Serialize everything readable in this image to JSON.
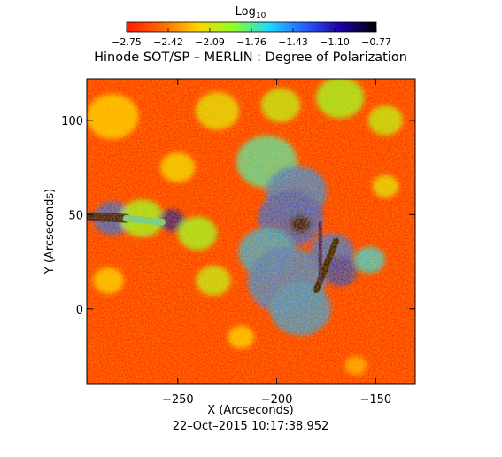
{
  "chart_data": {
    "type": "heatmap",
    "title": "Hinode SOT/SP – MERLIN : Degree of Polarization",
    "xlabel": "X (Arcseconds)",
    "ylabel": "Y (Arcseconds)",
    "xlim": [
      -296,
      -130
    ],
    "ylim": [
      -40,
      122
    ],
    "x_ticks": [
      -250,
      -200,
      -150
    ],
    "y_ticks": [
      0,
      50,
      100
    ],
    "x_tick_labels": [
      "−250",
      "−200",
      "−150"
    ],
    "y_tick_labels": [
      "0",
      "50",
      "100"
    ],
    "timestamp": "22–Oct–2015 10:17:38.952",
    "colorbar": {
      "label_base": "Log",
      "label_sub": "10",
      "range": [
        -2.75,
        -0.77
      ],
      "ticks": [
        -2.75,
        -2.42,
        -2.09,
        -1.76,
        -1.43,
        -1.1,
        -0.77
      ],
      "tick_labels": [
        "−2.75",
        "−2.42",
        "−2.09",
        "−1.76",
        "−1.43",
        "−1.10",
        "−0.77"
      ],
      "colors": [
        "#ff1a00",
        "#ff6a00",
        "#ffd400",
        "#8cff2a",
        "#1ed6ff",
        "#2a5cff",
        "#1a00a0",
        "#000000"
      ]
    },
    "regions": [
      {
        "x": -283,
        "y": 102,
        "r": 12,
        "level": -2.2
      },
      {
        "x": -230,
        "y": 105,
        "r": 10,
        "level": -2.1
      },
      {
        "x": -198,
        "y": 108,
        "r": 9,
        "level": -2.0
      },
      {
        "x": -168,
        "y": 112,
        "r": 11,
        "level": -1.9
      },
      {
        "x": -145,
        "y": 100,
        "r": 8,
        "level": -2.0
      },
      {
        "x": -205,
        "y": 78,
        "r": 14,
        "level": -1.7
      },
      {
        "x": -190,
        "y": 62,
        "r": 14,
        "level": -1.4
      },
      {
        "x": -193,
        "y": 48,
        "r": 15,
        "level": -1.3
      },
      {
        "x": -188,
        "y": 45,
        "r": 5,
        "level": -0.85
      },
      {
        "x": -205,
        "y": 30,
        "r": 13,
        "level": -1.5
      },
      {
        "x": -195,
        "y": 15,
        "r": 18,
        "level": -1.4
      },
      {
        "x": -188,
        "y": 0,
        "r": 14,
        "level": -1.45
      },
      {
        "x": -172,
        "y": 30,
        "r": 10,
        "level": -1.35
      },
      {
        "x": -168,
        "y": 20,
        "r": 8,
        "level": -1.2
      },
      {
        "x": -153,
        "y": 26,
        "r": 7,
        "level": -1.6
      },
      {
        "x": -283,
        "y": 48,
        "r": 9,
        "level": -1.3
      },
      {
        "x": -268,
        "y": 48,
        "r": 10,
        "level": -1.9
      },
      {
        "x": -253,
        "y": 47,
        "r": 6,
        "level": -1.05
      },
      {
        "x": -240,
        "y": 40,
        "r": 9,
        "level": -1.9
      },
      {
        "x": -232,
        "y": 15,
        "r": 8,
        "level": -2.0
      },
      {
        "x": -285,
        "y": 15,
        "r": 7,
        "level": -2.2
      },
      {
        "x": -250,
        "y": 75,
        "r": 8,
        "level": -2.15
      },
      {
        "x": -145,
        "y": 65,
        "r": 6,
        "level": -2.1
      },
      {
        "x": -218,
        "y": -15,
        "r": 6,
        "level": -2.2
      },
      {
        "x": -160,
        "y": -30,
        "r": 5,
        "level": -2.3
      }
    ],
    "lines": [
      {
        "x1": -170,
        "y1": 36,
        "x2": -180,
        "y2": 10,
        "w": 3.2,
        "level": -0.8
      },
      {
        "x1": -178,
        "y1": 46,
        "x2": -178,
        "y2": 14,
        "w": 1.8,
        "level": -1.0
      },
      {
        "x1": -294,
        "y1": 49,
        "x2": -276,
        "y2": 48,
        "w": 4.5,
        "level": -0.85
      },
      {
        "x1": -276,
        "y1": 48,
        "x2": -258,
        "y2": 46,
        "w": 3.5,
        "level": -1.7
      }
    ]
  }
}
